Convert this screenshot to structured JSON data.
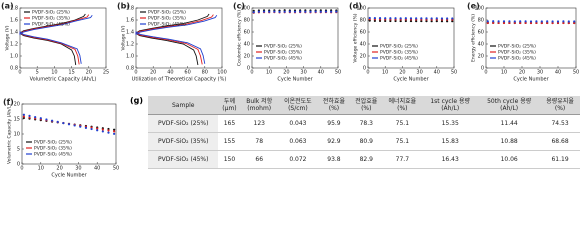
{
  "chart_data": [
    {
      "type": "line",
      "label": "(a)",
      "xlabel": "Volumetric Capacity (Ah/L)",
      "ylabel": "Voltage (V)",
      "xlim": [
        0,
        25
      ],
      "xticks": [
        0,
        5,
        10,
        15,
        20,
        25
      ],
      "ylim": [
        0.8,
        1.8
      ],
      "yticks": [
        0.8,
        {
          "value": 1,
          "label": "1.0"
        },
        1.2,
        1.4,
        1.6,
        1.8
      ],
      "legend": "upper left",
      "series": [
        {
          "name": "PVDF-SiO₂ (25%)",
          "color": "#111111",
          "x": [
            16.2,
            15.8,
            15.0,
            12,
            8,
            4,
            1,
            0,
            0,
            1,
            4,
            8,
            12,
            16,
            18.5,
            19.0
          ],
          "values": [
            0.85,
            1.0,
            1.1,
            1.2,
            1.26,
            1.3,
            1.34,
            1.38,
            1.38,
            1.42,
            1.46,
            1.5,
            1.54,
            1.6,
            1.66,
            1.7
          ]
        },
        {
          "name": "PVDF-SiO₂ (35%)",
          "color": "#e02020",
          "x": [
            17.2,
            16.8,
            16.0,
            12,
            8,
            4,
            1,
            0,
            0,
            1,
            4,
            8,
            12,
            16,
            19.5,
            20.0
          ],
          "values": [
            0.86,
            1.0,
            1.11,
            1.21,
            1.27,
            1.31,
            1.35,
            1.39,
            1.37,
            1.41,
            1.45,
            1.49,
            1.53,
            1.59,
            1.65,
            1.69
          ]
        },
        {
          "name": "PVDF-SiO₂ (45%)",
          "color": "#2040d0",
          "x": [
            17.8,
            17.4,
            16.6,
            12,
            8,
            4,
            1,
            0,
            0,
            1,
            4,
            8,
            12,
            16,
            20.5,
            21.0
          ],
          "values": [
            0.87,
            1.01,
            1.12,
            1.22,
            1.28,
            1.32,
            1.36,
            1.4,
            1.36,
            1.4,
            1.44,
            1.48,
            1.52,
            1.58,
            1.64,
            1.68
          ]
        }
      ]
    },
    {
      "type": "line",
      "label": "(b)",
      "xlabel": "Utilization of Theoretical Capacity (%)",
      "ylabel": "Voltage (V)",
      "xlim": [
        0,
        100
      ],
      "xticks": [
        0,
        20,
        40,
        60,
        80,
        100
      ],
      "ylim": [
        0.8,
        1.8
      ],
      "yticks": [
        0.8,
        {
          "value": 1,
          "label": "1.0"
        },
        1.2,
        1.4,
        1.6,
        1.8
      ],
      "legend": "upper left",
      "series": [
        {
          "name": "PVDF-SiO₂ (25%)",
          "color": "#111111",
          "x": [
            72,
            70,
            67,
            55,
            35,
            18,
            4,
            0,
            0,
            4,
            18,
            35,
            55,
            72,
            83,
            85
          ],
          "values": [
            0.85,
            1.0,
            1.1,
            1.2,
            1.26,
            1.3,
            1.34,
            1.38,
            1.38,
            1.42,
            1.46,
            1.5,
            1.54,
            1.6,
            1.66,
            1.7
          ]
        },
        {
          "name": "PVDF-SiO₂ (35%)",
          "color": "#e02020",
          "x": [
            77,
            75,
            72,
            58,
            37,
            19,
            4,
            0,
            0,
            4,
            19,
            37,
            58,
            76,
            88,
            90
          ],
          "values": [
            0.86,
            1.0,
            1.11,
            1.21,
            1.27,
            1.31,
            1.35,
            1.39,
            1.37,
            1.41,
            1.45,
            1.49,
            1.53,
            1.59,
            1.65,
            1.69
          ]
        },
        {
          "name": "PVDF-SiO₂ (45%)",
          "color": "#2040d0",
          "x": [
            80,
            78,
            75,
            60,
            38,
            20,
            5,
            0,
            0,
            5,
            20,
            38,
            60,
            79,
            92,
            94
          ],
          "values": [
            0.87,
            1.01,
            1.12,
            1.22,
            1.28,
            1.32,
            1.36,
            1.4,
            1.36,
            1.4,
            1.44,
            1.48,
            1.52,
            1.58,
            1.64,
            1.68
          ]
        }
      ]
    },
    {
      "type": "scatter",
      "label": "(c)",
      "xlabel": "Cycle Number",
      "ylabel": "Coulombic efficiency (%)",
      "xlim": [
        0,
        50
      ],
      "xticks": [
        0,
        10,
        20,
        30,
        40,
        50
      ],
      "ylim": [
        0,
        100
      ],
      "yticks": [
        0,
        20,
        40,
        60,
        80,
        100
      ],
      "legend": "lower left",
      "x": [
        1,
        4,
        7,
        10,
        13,
        16,
        19,
        22,
        25,
        28,
        31,
        34,
        37,
        40,
        43,
        46,
        49
      ],
      "series": [
        {
          "name": "PVDF-SiO₂ (25%)",
          "color": "#111111",
          "values": [
            95.2,
            95.8,
            96.1,
            95.9,
            96.0,
            95.7,
            96.2,
            95.9,
            95.8,
            96.0,
            96.1,
            95.9,
            95.8,
            96.0,
            95.9,
            96.1,
            95.8
          ]
        },
        {
          "name": "PVDF-SiO₂ (35%)",
          "color": "#e02020",
          "values": [
            92.1,
            92.8,
            93.0,
            92.9,
            93.1,
            92.7,
            92.9,
            93.0,
            92.8,
            93.1,
            92.9,
            92.8,
            93.0,
            92.9,
            93.1,
            92.8,
            93.0
          ]
        },
        {
          "name": "PVDF-SiO₂ (45%)",
          "color": "#2040d0",
          "values": [
            93.0,
            93.7,
            93.9,
            93.8,
            94.0,
            93.6,
            93.8,
            93.9,
            93.7,
            94.0,
            93.8,
            93.7,
            93.9,
            93.8,
            94.0,
            93.7,
            93.9
          ]
        }
      ]
    },
    {
      "type": "scatter",
      "label": "(d)",
      "xlabel": "Cycle Number",
      "ylabel": "Voltage efficiency (%)",
      "xlim": [
        0,
        50
      ],
      "xticks": [
        0,
        10,
        20,
        30,
        40,
        50
      ],
      "ylim": [
        0,
        100
      ],
      "yticks": [
        0,
        20,
        40,
        60,
        80,
        100
      ],
      "legend": "lower left",
      "x": [
        1,
        4,
        7,
        10,
        13,
        16,
        19,
        22,
        25,
        28,
        31,
        34,
        37,
        40,
        43,
        46,
        49
      ],
      "series": [
        {
          "name": "PVDF-SiO₂ (25%)",
          "color": "#111111",
          "values": [
            78.9,
            78.6,
            78.5,
            78.4,
            78.3,
            78.3,
            78.2,
            78.3,
            78.2,
            78.1,
            78.2,
            78.1,
            78.0,
            78.1,
            78.0,
            77.9,
            78.0
          ]
        },
        {
          "name": "PVDF-SiO₂ (35%)",
          "color": "#e02020",
          "values": [
            81.5,
            81.2,
            81.1,
            81.0,
            80.9,
            80.9,
            80.8,
            80.9,
            80.8,
            80.7,
            80.8,
            80.7,
            80.6,
            80.7,
            80.6,
            80.5,
            80.6
          ]
        },
        {
          "name": "PVDF-SiO₂ (45%)",
          "color": "#2040d0",
          "values": [
            83.4,
            83.2,
            83.1,
            83.0,
            82.9,
            82.9,
            82.8,
            82.9,
            82.8,
            82.7,
            82.8,
            82.7,
            82.6,
            82.7,
            82.6,
            82.5,
            82.6
          ]
        }
      ]
    },
    {
      "type": "scatter",
      "label": "(e)",
      "xlabel": "Cycle Number",
      "ylabel": "Energy efficiency (%)",
      "xlim": [
        0,
        50
      ],
      "xticks": [
        0,
        10,
        20,
        30,
        40,
        50
      ],
      "ylim": [
        0,
        100
      ],
      "yticks": [
        0,
        20,
        40,
        60,
        80,
        100
      ],
      "legend": "lower left",
      "x": [
        1,
        4,
        7,
        10,
        13,
        16,
        19,
        22,
        25,
        28,
        31,
        34,
        37,
        40,
        43,
        46,
        49
      ],
      "series": [
        {
          "name": "PVDF-SiO₂ (25%)",
          "color": "#111111",
          "values": [
            75.2,
            75.3,
            75.1,
            75.2,
            75.1,
            75.0,
            75.1,
            75.2,
            75.0,
            75.1,
            75.0,
            75.1,
            74.9,
            75.0,
            75.1,
            74.9,
            75.0
          ]
        },
        {
          "name": "PVDF-SiO₂ (35%)",
          "color": "#e02020",
          "values": [
            75.0,
            75.2,
            75.1,
            75.0,
            75.1,
            75.2,
            75.0,
            75.1,
            75.0,
            75.1,
            75.0,
            74.9,
            75.0,
            75.1,
            74.9,
            75.0,
            74.9
          ]
        },
        {
          "name": "PVDF-SiO₂ (45%)",
          "color": "#2040d0",
          "values": [
            77.8,
            77.9,
            77.7,
            77.8,
            77.7,
            77.6,
            77.7,
            77.8,
            77.6,
            77.7,
            77.6,
            77.7,
            77.5,
            77.6,
            77.7,
            77.5,
            77.6
          ]
        }
      ]
    },
    {
      "type": "scatter",
      "label": "(f)",
      "xlabel": "Cycle Number",
      "ylabel": "Volumetric Capacity (Ah/L)",
      "xlim": [
        0,
        50
      ],
      "xticks": [
        0,
        10,
        20,
        30,
        40,
        50
      ],
      "ylim": [
        0,
        20
      ],
      "yticks": [
        0,
        5,
        10,
        15,
        20
      ],
      "legend": "lower left",
      "x": [
        1,
        4,
        7,
        10,
        13,
        16,
        19,
        22,
        25,
        28,
        31,
        34,
        37,
        40,
        43,
        46,
        49
      ],
      "series": [
        {
          "name": "PVDF-SiO₂ (25%)",
          "color": "#111111",
          "values": [
            15.35,
            15.11,
            14.86,
            14.62,
            14.37,
            14.13,
            13.89,
            13.64,
            13.4,
            13.15,
            12.91,
            12.66,
            12.42,
            12.17,
            11.93,
            11.68,
            11.44
          ]
        },
        {
          "name": "PVDF-SiO₂ (35%)",
          "color": "#e02020",
          "values": [
            15.83,
            15.52,
            15.21,
            14.9,
            14.59,
            14.28,
            13.97,
            13.66,
            13.36,
            13.05,
            12.74,
            12.43,
            12.12,
            11.81,
            11.5,
            11.19,
            10.88
          ]
        },
        {
          "name": "PVDF-SiO₂ (45%)",
          "color": "#2040d0",
          "values": [
            16.43,
            16.03,
            15.63,
            15.24,
            14.84,
            14.44,
            14.04,
            13.64,
            13.25,
            12.85,
            12.45,
            12.05,
            11.65,
            11.25,
            10.86,
            10.46,
            10.06
          ]
        }
      ]
    }
  ],
  "table": {
    "label": "(g)",
    "header": [
      [
        "Sample"
      ],
      [
        "두께",
        "(μm)"
      ],
      [
        "Bulk 저항",
        "(mohm)"
      ],
      [
        "이온전도도",
        "(S/cm)"
      ],
      [
        "전하효율",
        "(%)"
      ],
      [
        "전압효율",
        "(%)"
      ],
      [
        "에너지효율",
        "(%)"
      ],
      [
        "1st cycle 용량",
        "(Ah/L)"
      ],
      [
        "50th cycle 용량",
        "(Ah/L)"
      ],
      [
        "용량유지율",
        "(%)"
      ]
    ],
    "rows": [
      [
        "PVDF-SiO₂ (25%)",
        "165",
        "123",
        "0.043",
        "95.9",
        "78.3",
        "75.1",
        "15.35",
        "11.44",
        "74.53"
      ],
      [
        "PVDF-SiO₂ (35%)",
        "155",
        "78",
        "0.063",
        "92.9",
        "80.9",
        "75.1",
        "15.83",
        "10.88",
        "68.68"
      ],
      [
        "PVDF-SiO₂ (45%)",
        "150",
        "66",
        "0.072",
        "93.8",
        "82.9",
        "77.7",
        "16.43",
        "10.06",
        "61.19"
      ]
    ]
  }
}
